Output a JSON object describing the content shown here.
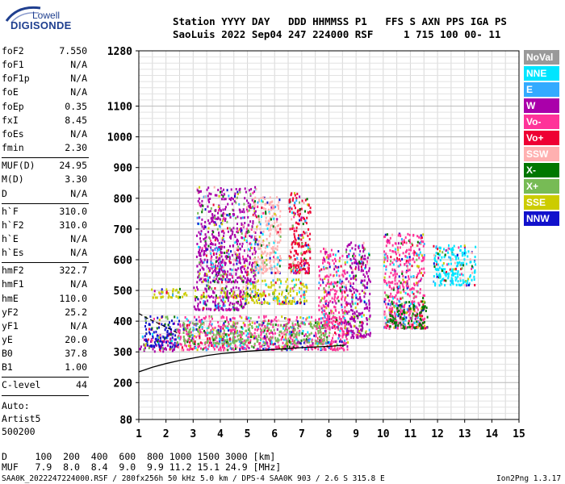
{
  "logo": {
    "line1": "Lowell",
    "line2": "DIGISONDE"
  },
  "header": {
    "row1": "Station YYYY DAY   DDD HHMMSS P1   FFS S AXN PPS IGA PS",
    "row2": "SaoLuis 2022 Sep04 247 224000 RSF     1 715 100 00- 11"
  },
  "params": [
    {
      "label": "foF2",
      "value": "7.550"
    },
    {
      "label": "foF1",
      "value": "N/A"
    },
    {
      "label": "foF1p",
      "value": "N/A"
    },
    {
      "label": "foE",
      "value": "N/A"
    },
    {
      "label": "foEp",
      "value": "0.35"
    },
    {
      "label": "fxI",
      "value": "8.45"
    },
    {
      "label": "foEs",
      "value": "N/A"
    },
    {
      "label": "fmin",
      "value": "2.30"
    },
    {
      "label": "MUF(D)",
      "value": "24.95"
    },
    {
      "label": "M(D)",
      "value": "3.30"
    },
    {
      "label": "D",
      "value": "N/A"
    },
    {
      "label": "h`F",
      "value": "310.0"
    },
    {
      "label": "h`F2",
      "value": "310.0"
    },
    {
      "label": "h`E",
      "value": "N/A"
    },
    {
      "label": "h`Es",
      "value": "N/A"
    },
    {
      "label": "hmF2",
      "value": "322.7"
    },
    {
      "label": "hmF1",
      "value": "N/A"
    },
    {
      "label": "hmE",
      "value": "110.0"
    },
    {
      "label": "yF2",
      "value": "25.2"
    },
    {
      "label": "yF1",
      "value": "N/A"
    },
    {
      "label": "yE",
      "value": "20.0"
    },
    {
      "label": "B0",
      "value": "37.8"
    },
    {
      "label": "B1",
      "value": "1.00"
    },
    {
      "label": "C-level",
      "value": "44"
    }
  ],
  "autoscaling": {
    "line1": "Auto:",
    "line2": "Artist5",
    "line3": "500200"
  },
  "muf_table": {
    "row_d": "D     100  200  400  600  800 1000 1500 3000 [km]",
    "row_muf": "MUF   7.9  8.0  8.4  9.0  9.9 11.2 15.1 24.9 [MHz]"
  },
  "footer": {
    "left": "SAA0K_2022247224000.RSF / 280fx256h 50 kHz 5.0 km / DPS-4 SAA0K 903 / 2.6 S 315.8 E",
    "right": "Ion2Png 1.3.17"
  },
  "legend": [
    {
      "label": "NoVal",
      "color": "#999999"
    },
    {
      "label": "NNE",
      "color": "#00e5ff"
    },
    {
      "label": "E",
      "color": "#33aaff"
    },
    {
      "label": "W",
      "color": "#aa00aa"
    },
    {
      "label": "Vo-",
      "color": "#ff3399"
    },
    {
      "label": "Vo+",
      "color": "#ee0033"
    },
    {
      "label": "SSW",
      "color": "#ffb0b0"
    },
    {
      "label": "X-",
      "color": "#007700"
    },
    {
      "label": "X+",
      "color": "#77bb55"
    },
    {
      "label": "SSE",
      "color": "#cccc00"
    },
    {
      "label": "NNW",
      "color": "#1111cc"
    }
  ],
  "chart_data": {
    "type": "scatter",
    "xlabel": "",
    "ylabel": "",
    "xlim": [
      1,
      15
    ],
    "ylim": [
      80,
      1280
    ],
    "x_ticks": [
      1,
      2,
      3,
      4,
      5,
      6,
      7,
      8,
      9,
      10,
      11,
      12,
      13,
      14,
      15
    ],
    "y_ticks": [
      80,
      200,
      300,
      400,
      500,
      600,
      700,
      800,
      900,
      1000,
      1100,
      1280
    ],
    "grid": true,
    "legend_position": "right",
    "profile_curve": {
      "name": "",
      "x": [
        1.0,
        1.5,
        2.0,
        2.5,
        3.0,
        3.5,
        4.0,
        5.0,
        6.0,
        7.0,
        8.0,
        8.6
      ],
      "y": [
        235,
        250,
        262,
        272,
        280,
        288,
        294,
        302,
        308,
        314,
        318,
        322
      ]
    },
    "fitted_trace": {
      "x": [
        1.0,
        1.3,
        1.6,
        1.9,
        2.2,
        2.5
      ],
      "y": [
        425,
        410,
        398,
        385,
        372,
        358
      ]
    },
    "echo_clusters": [
      {
        "f": [
          1.0,
          2.3
        ],
        "h": [
          305,
          360
        ],
        "mode": "W"
      },
      {
        "f": [
          1.2,
          2.5
        ],
        "h": [
          320,
          420
        ],
        "mode": "NNW"
      },
      {
        "f": [
          1.4,
          2.8
        ],
        "h": [
          480,
          510
        ],
        "mode": "SSE"
      },
      {
        "f": [
          3.0,
          4.9
        ],
        "h": [
          440,
          520
        ],
        "mode": "W"
      },
      {
        "f": [
          3.0,
          5.6
        ],
        "h": [
          480,
          500
        ],
        "mode": "SSE"
      },
      {
        "f": [
          4.9,
          7.2
        ],
        "h": [
          460,
          540
        ],
        "mode": "SSE"
      },
      {
        "f": [
          2.4,
          8.7
        ],
        "h": [
          310,
          420
        ],
        "mode": "Vo-"
      },
      {
        "f": [
          2.6,
          8.0
        ],
        "h": [
          330,
          400
        ],
        "mode": "X+"
      },
      {
        "f": [
          3.1,
          5.3
        ],
        "h": [
          530,
          840
        ],
        "mode": "W"
      },
      {
        "f": [
          5.2,
          6.2
        ],
        "h": [
          560,
          810
        ],
        "mode": "SSW"
      },
      {
        "f": [
          6.5,
          7.3
        ],
        "h": [
          560,
          820
        ],
        "mode": "Vo+"
      },
      {
        "f": [
          7.6,
          8.6
        ],
        "h": [
          380,
          640
        ],
        "mode": "Vo-"
      },
      {
        "f": [
          8.6,
          9.5
        ],
        "h": [
          350,
          660
        ],
        "mode": "W"
      },
      {
        "f": [
          10.0,
          11.5
        ],
        "h": [
          380,
          690
        ],
        "mode": "Vo-"
      },
      {
        "f": [
          10.2,
          11.6
        ],
        "h": [
          380,
          470
        ],
        "mode": "X-"
      },
      {
        "f": [
          11.8,
          13.4
        ],
        "h": [
          520,
          650
        ],
        "mode": "NNE"
      }
    ]
  }
}
